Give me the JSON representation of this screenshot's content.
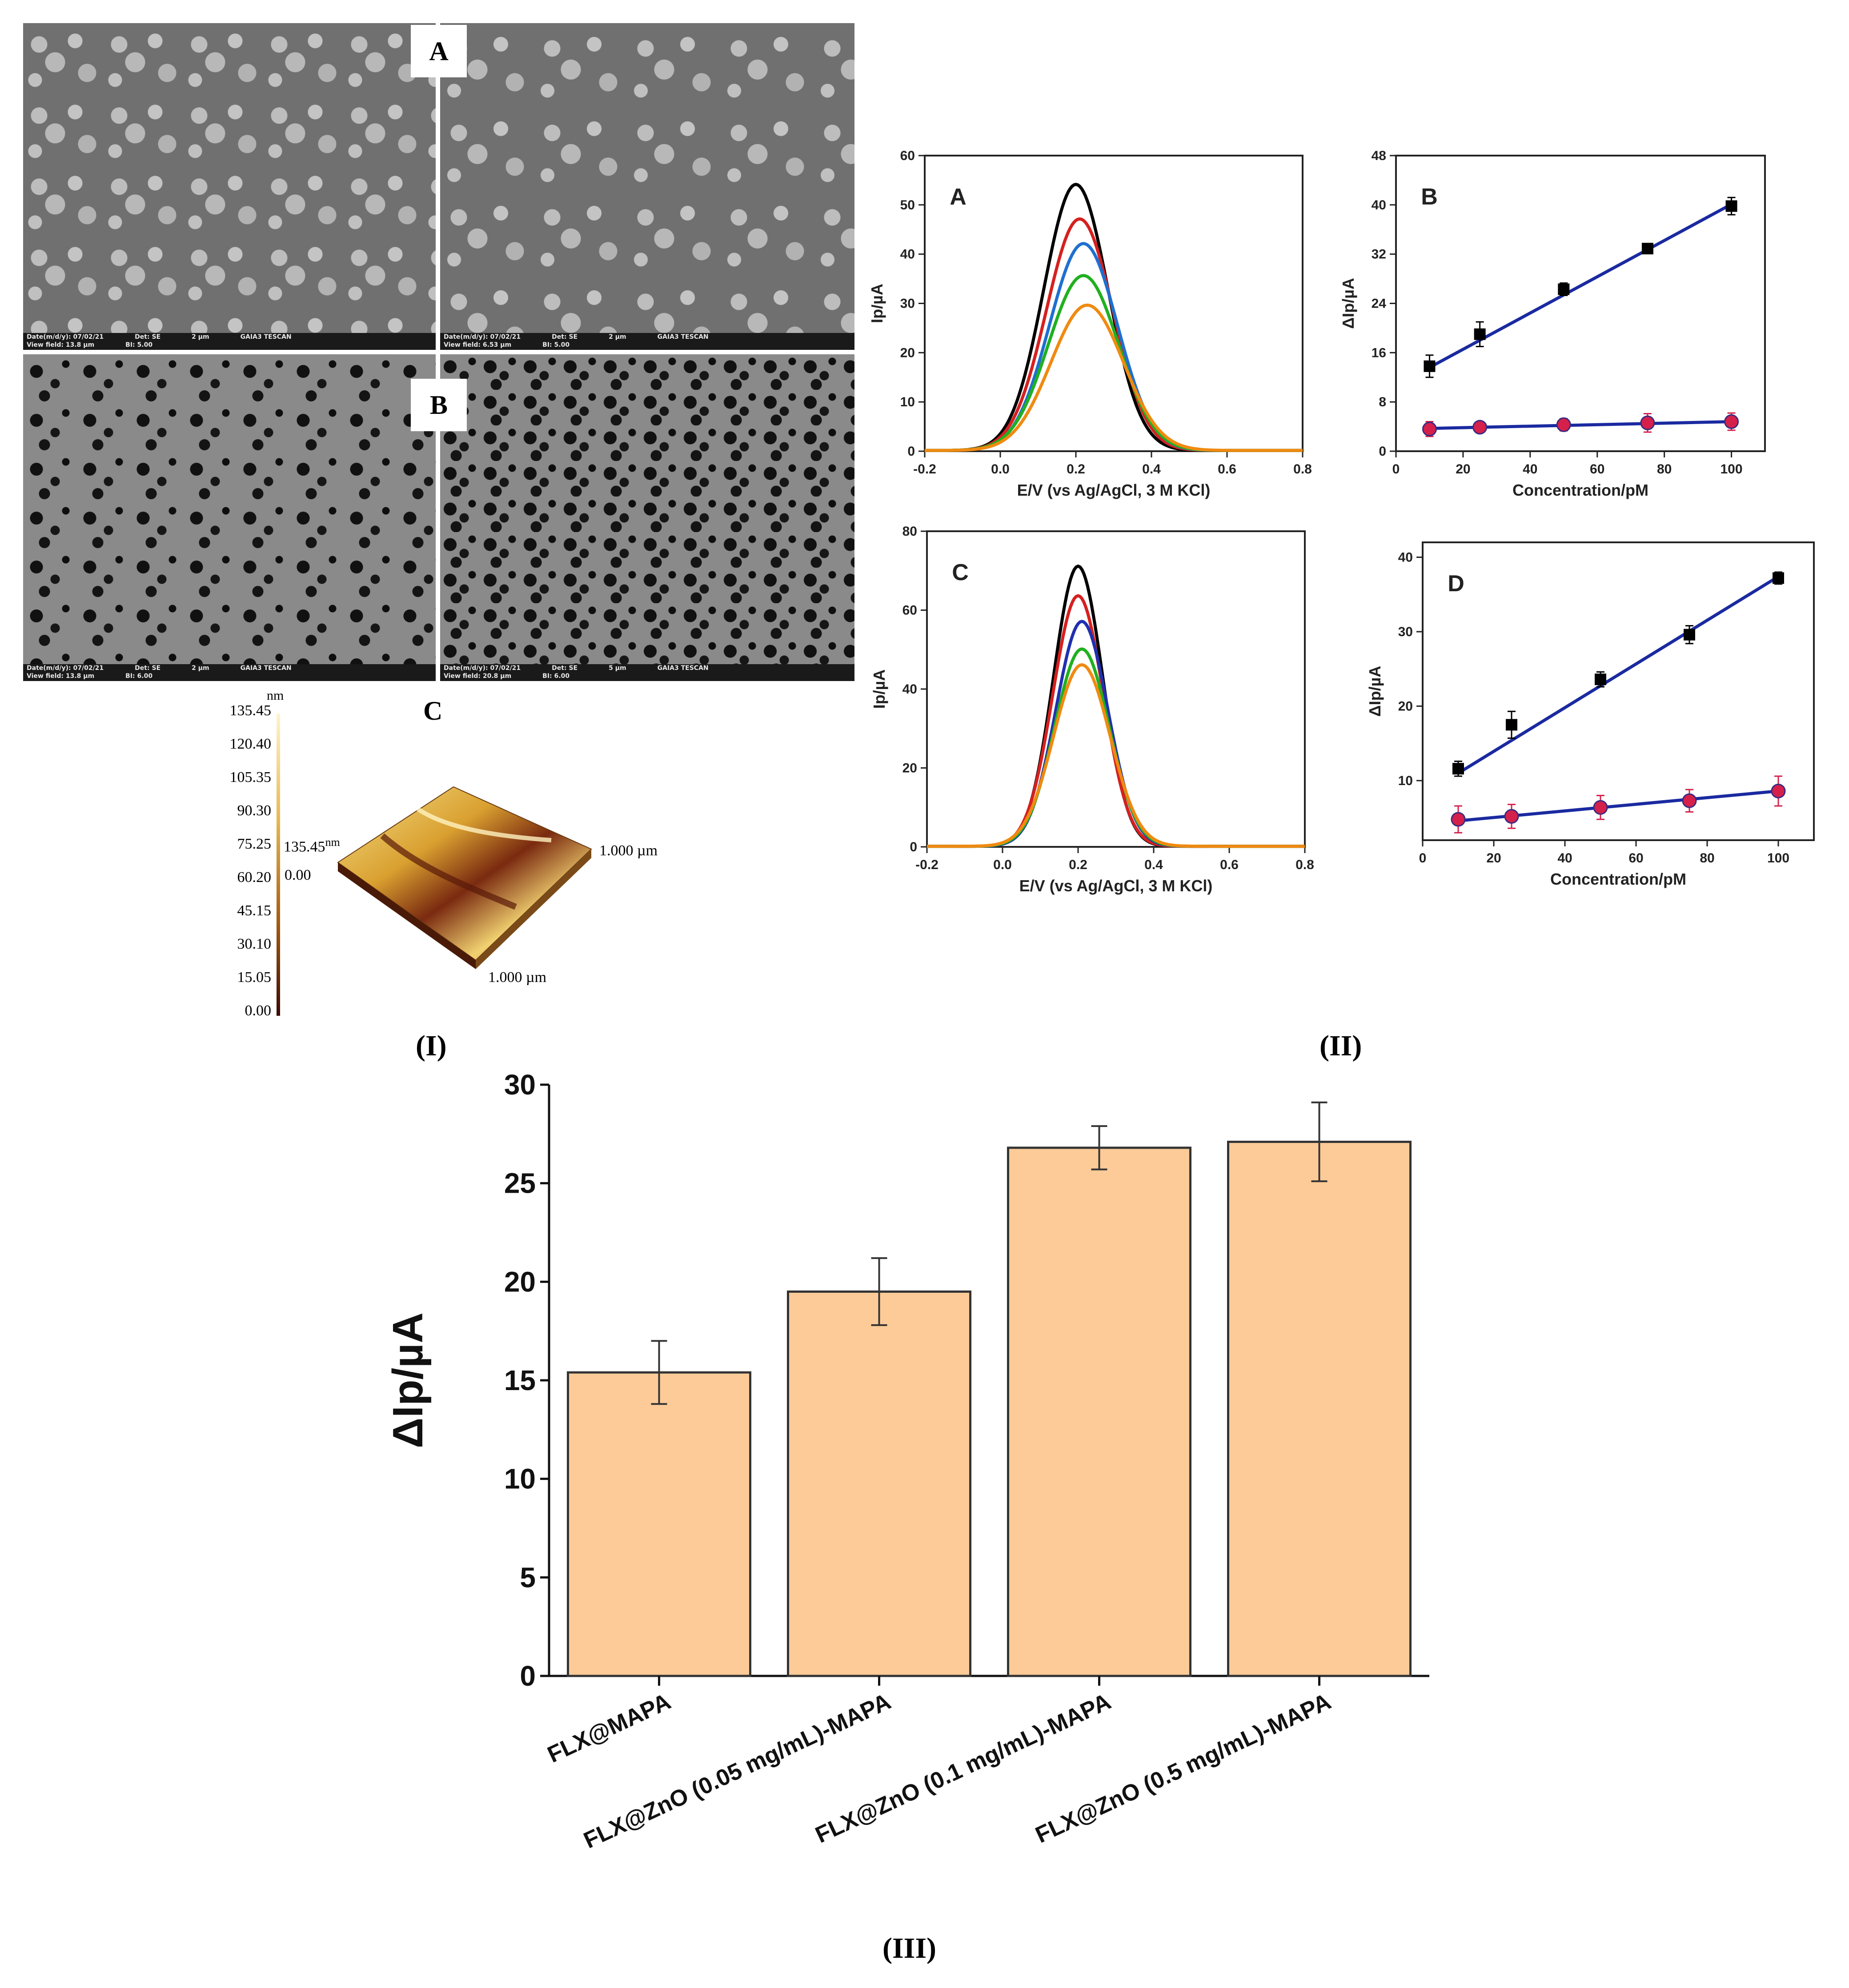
{
  "figure": {
    "panel_labels": {
      "I": "(I)",
      "II": "(II)",
      "III": "(III)"
    }
  },
  "sem": {
    "label_a": "A",
    "label_b": "B",
    "label_c": "C",
    "images": [
      {
        "date": "Date(m/d/y): 07/02/21",
        "det": "Det: SE",
        "view": "View field: 13.8 µm",
        "bi": "BI: 5.00",
        "scale": "2 µm",
        "brand": "GAIA3 TESCAN"
      },
      {
        "date": "Date(m/d/y): 07/02/21",
        "det": "Det: SE",
        "view": "View field: 6.53 µm",
        "bi": "BI: 5.00",
        "scale": "2 µm",
        "brand": "GAIA3 TESCAN"
      },
      {
        "date": "Date(m/d/y): 07/02/21",
        "det": "Det: SE",
        "view": "View field: 13.8 µm",
        "bi": "BI: 6.00",
        "scale": "2 µm",
        "brand": "GAIA3 TESCAN"
      },
      {
        "date": "Date(m/d/y): 07/02/21",
        "det": "Det: SE",
        "view": "View field: 20.8 µm",
        "bi": "BI: 6.00",
        "scale": "5 µm",
        "brand": "GAIA3 TESCAN"
      }
    ]
  },
  "afm": {
    "unit": "nm",
    "scale_ticks": [
      "135.45",
      "120.40",
      "105.35",
      "90.30",
      "75.25",
      "60.20",
      "45.15",
      "30.10",
      "15.05",
      "0.00"
    ],
    "inset_max": "135.45",
    "inset_unit": "nm",
    "inset_min": "0.00",
    "axis_right": "1.000 µm",
    "axis_bottom": "1.000 µm"
  },
  "chart_data": [
    {
      "id": "II-A",
      "type": "line",
      "panel": "A",
      "xlabel": "E/V (vs Ag/AgCl, 3 M KCl)",
      "ylabel": "Ip/µA",
      "xlim": [
        -0.2,
        0.8
      ],
      "ylim": [
        0,
        60
      ],
      "xticks": [
        -0.2,
        0.0,
        0.2,
        0.4,
        0.6,
        0.8
      ],
      "yticks": [
        0,
        10,
        20,
        30,
        40,
        50,
        60
      ],
      "series": [
        {
          "name": "black",
          "color": "#000000",
          "peak_E": 0.2,
          "peak_I": 54,
          "width": 0.085
        },
        {
          "name": "red",
          "color": "#d62020",
          "peak_E": 0.21,
          "peak_I": 47,
          "width": 0.088
        },
        {
          "name": "blue",
          "color": "#1f6fd0",
          "peak_E": 0.22,
          "peak_I": 42,
          "width": 0.09
        },
        {
          "name": "green",
          "color": "#20b020",
          "peak_E": 0.22,
          "peak_I": 35.5,
          "width": 0.093
        },
        {
          "name": "orange",
          "color": "#f08a10",
          "peak_E": 0.23,
          "peak_I": 29.5,
          "width": 0.096
        }
      ]
    },
    {
      "id": "II-B",
      "type": "scatter",
      "panel": "B",
      "xlabel": "Concentration/pM",
      "ylabel": "ΔIp/µA",
      "xlim": [
        0,
        110
      ],
      "ylim": [
        0,
        48
      ],
      "xticks": [
        0,
        20,
        40,
        60,
        80,
        100
      ],
      "yticks": [
        0,
        8,
        16,
        24,
        32,
        40,
        48
      ],
      "x": [
        10,
        25,
        50,
        75,
        100
      ],
      "series": [
        {
          "name": "squares",
          "marker": "square",
          "color": "#000000",
          "values": [
            13.8,
            19.0,
            26.3,
            32.9,
            39.8
          ],
          "err": [
            1.8,
            2.0,
            1.0,
            0.6,
            1.4
          ],
          "fit": [
            13.6,
            40.1
          ]
        },
        {
          "name": "circles",
          "marker": "circle",
          "color": "#d4204a",
          "values": [
            3.6,
            3.9,
            4.3,
            4.6,
            4.8
          ],
          "err": [
            1.2,
            0.8,
            1.0,
            1.5,
            1.4
          ],
          "fit": [
            3.7,
            4.8
          ]
        }
      ]
    },
    {
      "id": "II-C",
      "type": "line",
      "panel": "C",
      "xlabel": "E/V (vs Ag/AgCl, 3 M KCl)",
      "ylabel": "Ip/µA",
      "xlim": [
        -0.2,
        0.8
      ],
      "ylim": [
        0,
        80
      ],
      "xticks": [
        -0.2,
        0.0,
        0.2,
        0.4,
        0.6,
        0.8
      ],
      "yticks": [
        0,
        20,
        40,
        60,
        80
      ],
      "series": [
        {
          "name": "black",
          "color": "#000000",
          "peak_E": 0.2,
          "peak_I": 71,
          "width": 0.065
        },
        {
          "name": "red",
          "color": "#d62020",
          "peak_E": 0.2,
          "peak_I": 63.5,
          "width": 0.067
        },
        {
          "name": "blue",
          "color": "#2030b0",
          "peak_E": 0.21,
          "peak_I": 57,
          "width": 0.069
        },
        {
          "name": "green",
          "color": "#20b020",
          "peak_E": 0.21,
          "peak_I": 50,
          "width": 0.072
        },
        {
          "name": "orange",
          "color": "#f08a10",
          "peak_E": 0.21,
          "peak_I": 46,
          "width": 0.075
        }
      ]
    },
    {
      "id": "II-D",
      "type": "scatter",
      "panel": "D",
      "xlabel": "Concentration/pM",
      "ylabel": "ΔIp/µA",
      "xlim": [
        0,
        110
      ],
      "ylim": [
        2,
        42
      ],
      "xticks": [
        0,
        20,
        40,
        60,
        80,
        100
      ],
      "yticks": [
        10,
        20,
        30,
        40
      ],
      "x": [
        10,
        25,
        50,
        75,
        100
      ],
      "series": [
        {
          "name": "squares",
          "marker": "square",
          "color": "#000000",
          "values": [
            11.6,
            17.5,
            23.6,
            29.6,
            37.2
          ],
          "err": [
            1.0,
            1.8,
            1.0,
            1.2,
            0.8
          ],
          "fit": [
            11.0,
            37.4
          ]
        },
        {
          "name": "circles",
          "marker": "circle",
          "color": "#d4204a",
          "values": [
            4.8,
            5.2,
            6.4,
            7.3,
            8.6
          ],
          "err": [
            1.8,
            1.6,
            1.6,
            1.5,
            2.0
          ],
          "fit": [
            4.6,
            8.6
          ]
        }
      ]
    },
    {
      "id": "III",
      "type": "bar",
      "title": "",
      "xlabel": "",
      "ylabel": "ΔIp/µA",
      "ylim": [
        0,
        30
      ],
      "yticks": [
        0,
        5,
        10,
        15,
        20,
        25,
        30
      ],
      "categories": [
        "FLX@MAPA",
        "FLX@ZnO (0.05 mg/mL)-MAPA",
        "FLX@ZnO (0.1 mg/mL)-MAPA",
        "FLX@ZnO (0.5 mg/mL)-MAPA"
      ],
      "values": [
        15.4,
        19.5,
        26.8,
        27.1
      ],
      "err": [
        1.6,
        1.7,
        1.1,
        2.0
      ],
      "bar_color": "#fccb98"
    }
  ]
}
